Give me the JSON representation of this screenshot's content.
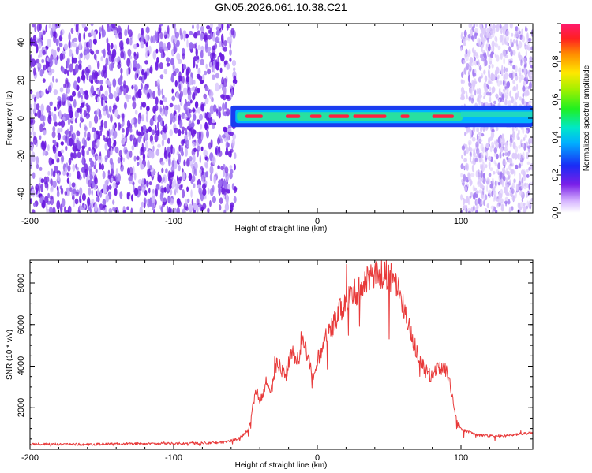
{
  "title": "GN05.2026.061.10.38.C21",
  "colors": {
    "trace": "#e83a3a",
    "noise": "#6a1be0",
    "band_core": "#ff2040",
    "band_mid": "#28e0a0",
    "band_edge": "#1a3cf0"
  },
  "chart_data": [
    {
      "type": "heatmap",
      "name": "spectrogram",
      "xlabel": "Height of straight line (km)",
      "ylabel": "Frequency (Hz)",
      "xlim": [
        -200,
        150
      ],
      "ylim": [
        -50,
        50
      ],
      "x_ticks": [
        -200,
        -100,
        0,
        100
      ],
      "x_tick_labels": [
        "-200",
        "-100",
        "0",
        "100"
      ],
      "y_ticks": [
        -40,
        -20,
        0,
        20,
        40
      ],
      "y_tick_labels": [
        "-40",
        "-20",
        "0",
        "20",
        "40"
      ],
      "colorbar": {
        "label": "Normalized spectral amplitude",
        "range": [
          0,
          1
        ],
        "ticks": [
          0,
          0.2,
          0.4,
          0.6,
          0.8
        ],
        "tick_labels": [
          "0.0",
          "0.2",
          "0.4",
          "0.6",
          "0.8"
        ]
      },
      "regions": [
        {
          "x_range": [
            -200,
            -57
          ],
          "kind": "broadband_noise",
          "amplitude": 0.22
        },
        {
          "x_range": [
            -57,
            100
          ],
          "kind": "narrow_band",
          "center_hz": 1.0,
          "half_width_hz": 3,
          "peak_amplitude": 1.0
        },
        {
          "x_range": [
            100,
            150
          ],
          "kind": "weak_noise_with_band",
          "amplitude": 0.1,
          "center_hz": 2.0
        }
      ]
    },
    {
      "type": "line",
      "name": "snr",
      "xlabel": "Height of straight line (km)",
      "ylabel": "SNR (10 * v/v)",
      "xlim": [
        -200,
        150
      ],
      "ylim": [
        0,
        9100
      ],
      "x_ticks": [
        -200,
        -100,
        0,
        100
      ],
      "x_tick_labels": [
        "-200",
        "-100",
        "0",
        "100"
      ],
      "y_ticks": [
        2000,
        4000,
        6000,
        8000
      ],
      "y_tick_labels": [
        "2000",
        "4000",
        "6000",
        "8000"
      ],
      "series": [
        {
          "name": "SNR",
          "x": [
            -200,
            -180,
            -160,
            -140,
            -120,
            -100,
            -80,
            -65,
            -55,
            -48,
            -45,
            -42,
            -40,
            -38,
            -35,
            -32,
            -30,
            -28,
            -25,
            -22,
            -20,
            -18,
            -15,
            -12,
            -10,
            -8,
            -5,
            -2,
            0,
            3,
            5,
            8,
            10,
            15,
            20,
            25,
            30,
            35,
            40,
            45,
            50,
            55,
            58,
            62,
            65,
            70,
            75,
            78,
            82,
            86,
            90,
            93,
            96,
            100,
            105,
            110,
            120,
            130,
            140,
            150
          ],
          "y": [
            250,
            250,
            240,
            260,
            270,
            280,
            300,
            330,
            500,
            900,
            2100,
            2900,
            2300,
            2600,
            3400,
            2800,
            3500,
            4200,
            3800,
            3500,
            4100,
            4700,
            4300,
            4400,
            5600,
            4900,
            3900,
            3500,
            4300,
            4800,
            5200,
            5600,
            5800,
            6600,
            7100,
            7500,
            7700,
            8200,
            8300,
            8400,
            8350,
            7900,
            7400,
            6500,
            5500,
            4600,
            3900,
            3500,
            3800,
            3950,
            3800,
            2900,
            1600,
            1000,
            850,
            700,
            650,
            650,
            720,
            800
          ]
        }
      ]
    }
  ]
}
